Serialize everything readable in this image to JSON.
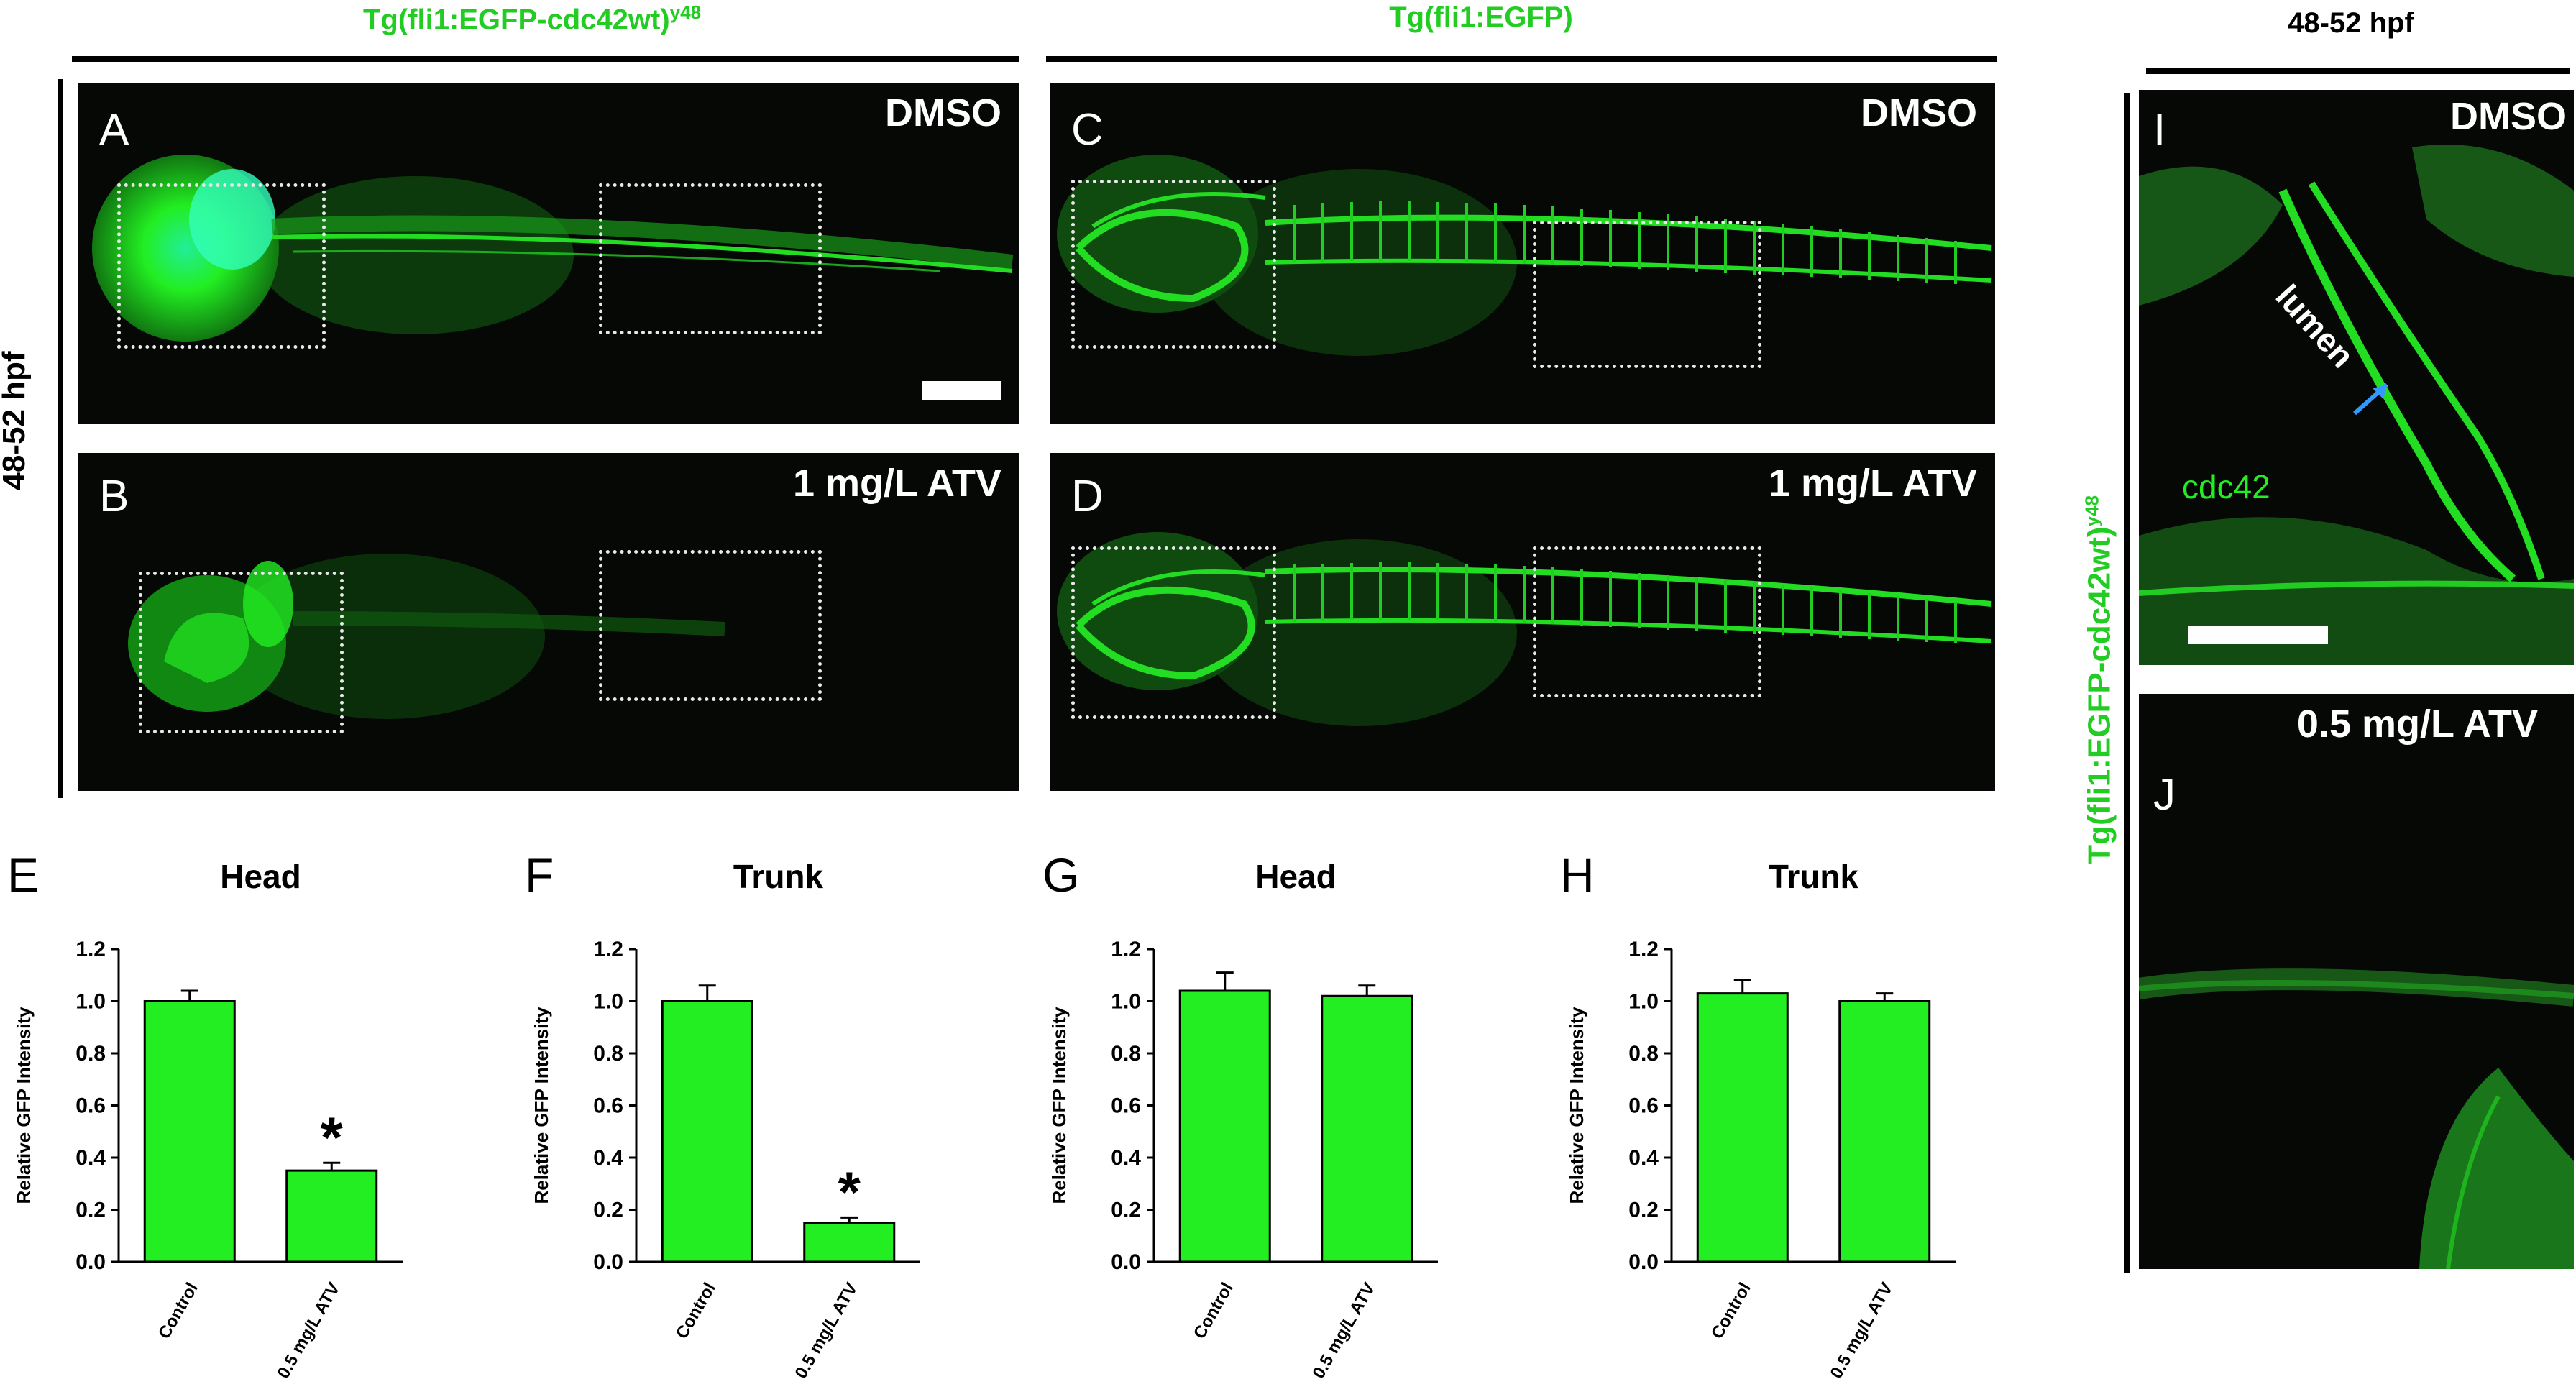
{
  "headers": {
    "left_transgene": "Tg(fli1:EGFP-cdc42wt)",
    "left_transgene_sup": "y48",
    "mid_transgene": "Tg(fli1:EGFP)",
    "right_stage": "48-52 hpf",
    "side_stage": "48-52 hpf",
    "right_side_transgene": "Tg(fli1:EGFP-cdc42wt)",
    "right_side_transgene_sup": "y48"
  },
  "panels": {
    "A": {
      "letter": "A",
      "condition": "DMSO"
    },
    "B": {
      "letter": "B",
      "condition": "1 mg/L ATV"
    },
    "C": {
      "letter": "C",
      "condition": "DMSO"
    },
    "D": {
      "letter": "D",
      "condition": "1 mg/L ATV"
    },
    "I": {
      "letter": "I",
      "condition": "DMSO",
      "label_lumen": "lumen",
      "label_cdc42": "cdc42"
    },
    "J": {
      "letter": "J",
      "condition": "0.5 mg/L ATV"
    }
  },
  "colors": {
    "fluorescence": "#22dd22",
    "bar_fill": "#22ee22",
    "arrow": "#3399ff",
    "header_green": "#22cc22"
  },
  "chart_data": [
    {
      "letter": "E",
      "type": "bar",
      "title": "Head",
      "ylabel": "Relative GFP Intensity",
      "categories": [
        "Control",
        "0.5 mg/L ATV"
      ],
      "values": [
        1.0,
        0.35
      ],
      "errors": [
        0.04,
        0.03
      ],
      "significance": [
        "",
        "*"
      ],
      "ylim": [
        0,
        1.2
      ],
      "yticks": [
        "0.0",
        "0.2",
        "0.4",
        "0.6",
        "0.8",
        "1.0",
        "1.2"
      ]
    },
    {
      "letter": "F",
      "type": "bar",
      "title": "Trunk",
      "ylabel": "Relative GFP Intensity",
      "categories": [
        "Control",
        "0.5 mg/L ATV"
      ],
      "values": [
        1.0,
        0.15
      ],
      "errors": [
        0.06,
        0.02
      ],
      "significance": [
        "",
        "*"
      ],
      "ylim": [
        0,
        1.2
      ],
      "yticks": [
        "0.0",
        "0.2",
        "0.4",
        "0.6",
        "0.8",
        "1.0",
        "1.2"
      ]
    },
    {
      "letter": "G",
      "type": "bar",
      "title": "Head",
      "ylabel": "Relative GFP Intensity",
      "categories": [
        "Control",
        "0.5 mg/L ATV"
      ],
      "values": [
        1.04,
        1.02
      ],
      "errors": [
        0.07,
        0.04
      ],
      "significance": [
        "",
        ""
      ],
      "ylim": [
        0,
        1.2
      ],
      "yticks": [
        "0.0",
        "0.2",
        "0.4",
        "0.6",
        "0.8",
        "1.0",
        "1.2"
      ]
    },
    {
      "letter": "H",
      "type": "bar",
      "title": "Trunk",
      "ylabel": "Relative GFP Intensity",
      "categories": [
        "Control",
        "0.5 mg/L ATV"
      ],
      "values": [
        1.03,
        1.0
      ],
      "errors": [
        0.05,
        0.03
      ],
      "significance": [
        "",
        ""
      ],
      "ylim": [
        0,
        1.2
      ],
      "yticks": [
        "0.0",
        "0.2",
        "0.4",
        "0.6",
        "0.8",
        "1.0",
        "1.2"
      ]
    }
  ]
}
